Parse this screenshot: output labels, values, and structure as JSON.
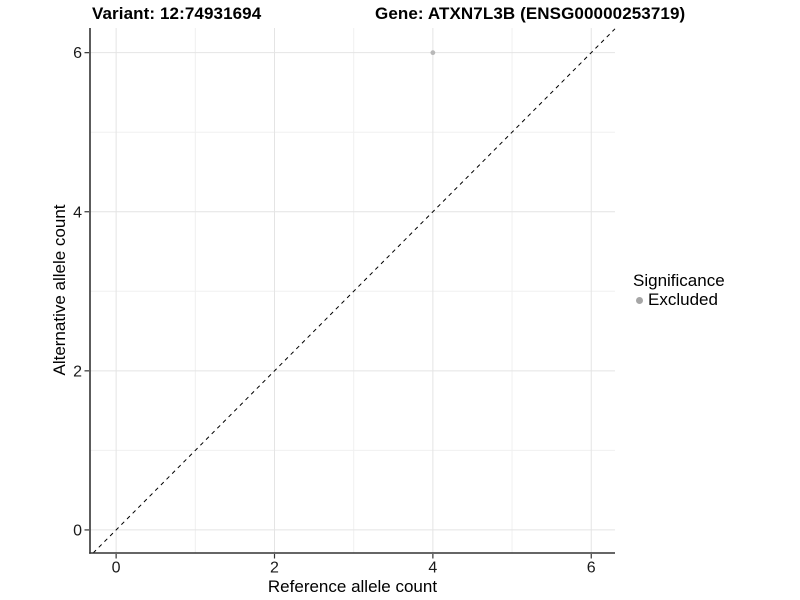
{
  "figure": {
    "title_left": "Variant: 12:74931694",
    "title_right": "Gene: ATXN7L3B (ENSG00000253719)"
  },
  "chart_data": {
    "type": "scatter",
    "title_left": "Variant: 12:74931694",
    "title_right": "Gene: ATXN7L3B (ENSG00000253719)",
    "xlabel": "Reference allele count",
    "ylabel": "Alternative allele count",
    "xlim": [
      -0.33,
      6.3
    ],
    "ylim": [
      -0.29,
      6.31
    ],
    "x_major_ticks": [
      0,
      2,
      4,
      6
    ],
    "y_major_ticks": [
      0,
      2,
      4,
      6
    ],
    "x_minor_ticks": [
      1,
      3,
      5
    ],
    "y_minor_ticks": [
      1,
      3,
      5
    ],
    "grid": true,
    "legend_position": "right",
    "points": [
      {
        "x": 4,
        "y": 6,
        "series": "Excluded",
        "color": "#b8b8b8",
        "radius": 2.4
      }
    ],
    "reference_line": {
      "slope": 1,
      "intercept": 0,
      "style": "dashed",
      "color": "#000000"
    },
    "legend": {
      "title": "Significance",
      "entries": [
        {
          "label": "Excluded",
          "color": "#a6a6a6"
        }
      ]
    },
    "colors": {
      "background": "#ffffff",
      "axis": "#333333",
      "grid_major": "#e4e4e4",
      "grid_minor": "#f0f0f0",
      "tick_label": "#1a1a1a"
    }
  }
}
